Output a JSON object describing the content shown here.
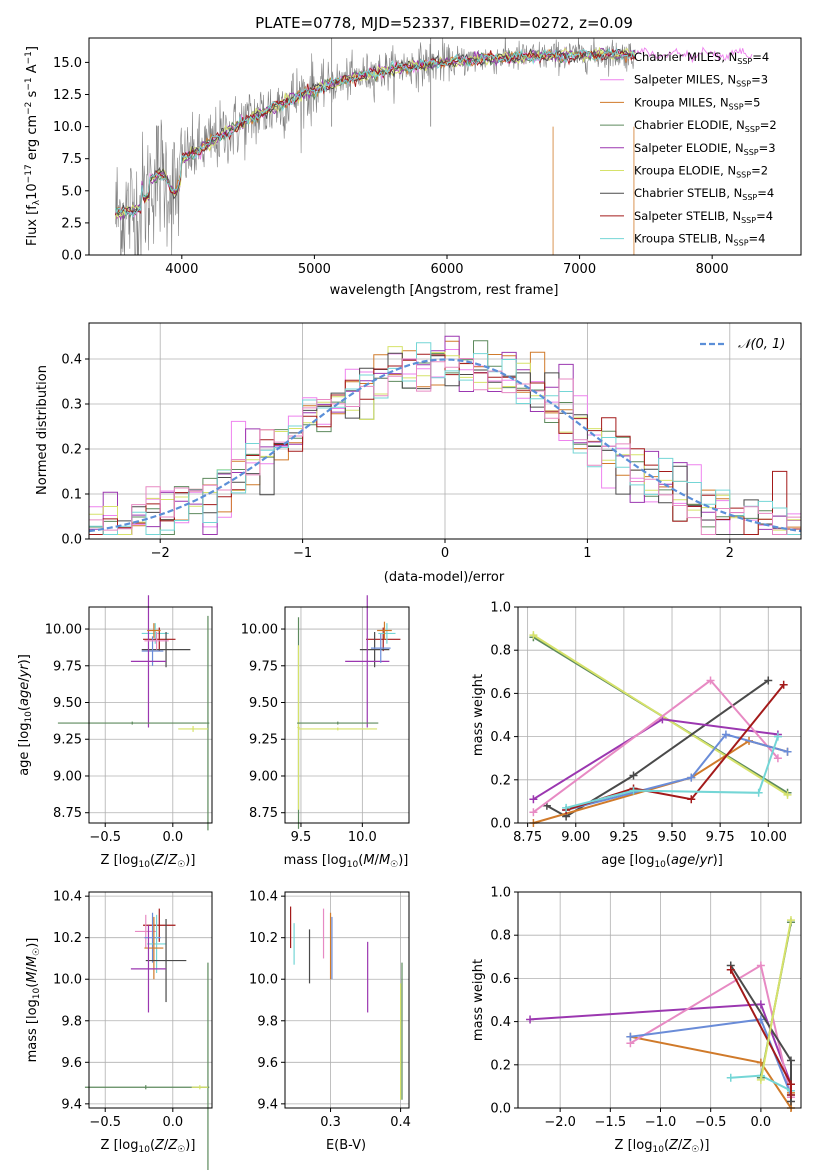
{
  "colors": [
    "#808080",
    "#ee82ee",
    "#d07a2a",
    "#5d8a5d",
    "#9b37b0",
    "#d6e26a",
    "#4a4a4a",
    "#a31a1a",
    "#74d6d6"
  ],
  "chart_data": [
    {
      "id": "spectrum",
      "type": "line",
      "title": "PLATE=0778, MJD=52337, FIBERID=0272, z=0.09",
      "xlabel": "wavelength [Angstrom, rest frame]",
      "ylabel_main": "Flux [f",
      "ylabel_sub": "λ",
      "ylabel_rest": "10",
      "ylabel_sup1": "−17",
      "ylabel_units": " erg cm",
      "ylabel_sup2": "−2",
      "ylabel_s": " s",
      "ylabel_sup3": "−1",
      "ylabel_A": " A",
      "ylabel_sup4": "−1",
      "ylabel_close": "]",
      "xlim": [
        3300,
        8670
      ],
      "ylim": [
        0,
        16.9
      ],
      "xticks": [
        "4000",
        "5000",
        "6000",
        "7000",
        "8000"
      ],
      "yticks": [
        "0.0",
        "2.5",
        "5.0",
        "7.5",
        "10.0",
        "12.5",
        "15.0"
      ],
      "legend_loc": "right",
      "legend": [
        {
          "label": "Chabrier MILES, N",
          "sub": "SSP",
          "suffix": "=4"
        },
        {
          "label": "Salpeter MILES, N",
          "sub": "SSP",
          "suffix": "=3"
        },
        {
          "label": "Kroupa MILES, N",
          "sub": "SSP",
          "suffix": "=5"
        },
        {
          "label": "Chabrier ELODIE, N",
          "sub": "SSP",
          "suffix": "=2"
        },
        {
          "label": "Salpeter ELODIE, N",
          "sub": "SSP",
          "suffix": "=3"
        },
        {
          "label": "Kroupa ELODIE, N",
          "sub": "SSP",
          "suffix": "=2"
        },
        {
          "label": "Chabrier STELIB, N",
          "sub": "SSP",
          "suffix": "=4"
        },
        {
          "label": "Salpeter STELIB, N",
          "sub": "SSP",
          "suffix": "=4"
        },
        {
          "label": "Kroupa STELIB, N",
          "sub": "SSP",
          "suffix": "=4"
        }
      ]
    },
    {
      "id": "residuals",
      "type": "histogram",
      "xlabel": "(data-model)/error",
      "ylabel": "Normed distribution",
      "xlim": [
        -2.5,
        2.5
      ],
      "ylim": [
        0,
        0.48
      ],
      "xticks": [
        "−2",
        "−1",
        "0",
        "1",
        "2"
      ],
      "yticks": [
        "0.0",
        "0.1",
        "0.2",
        "0.3",
        "0.4"
      ],
      "legend": "𝒩(0, 1)",
      "gaussian": {
        "mu": 0,
        "sigma": 1
      },
      "bin_width": 0.1
    },
    {
      "id": "age_vs_Z",
      "type": "errorbar",
      "xlabel": "Z [log10(Z/Z☉)]",
      "ylabel": "age  [log10(age/yr)]",
      "xlim": [
        -0.62,
        0.29
      ],
      "ylim": [
        8.68,
        10.15
      ],
      "xticks": [
        "−0.5",
        "0.0"
      ],
      "yticks": [
        "8.75",
        "9.00",
        "9.25",
        "9.50",
        "9.75",
        "10.00"
      ],
      "points": [
        {
          "x": -0.13,
          "y": 9.97,
          "xerr": 0.1,
          "yerr": 0.07,
          "color": "#74d6d6"
        },
        {
          "x": -0.1,
          "y": 9.93,
          "xerr": 0.12,
          "yerr": 0.08,
          "color": "#a31a1a"
        },
        {
          "x": -0.05,
          "y": 9.86,
          "xerr": 0.18,
          "yerr": 0.12,
          "color": "#4a4a4a"
        },
        {
          "x": -0.15,
          "y": 9.85,
          "xerr": 0.08,
          "yerr": 0.1,
          "color": "#6a8cd8"
        },
        {
          "x": -0.18,
          "y": 9.78,
          "xerr": 0.13,
          "yerr": 0.45,
          "color": "#9b37b0"
        },
        {
          "x": -0.12,
          "y": 9.92,
          "xerr": 0.09,
          "yerr": 0.06,
          "color": "#e78ac3"
        },
        {
          "x": -0.14,
          "y": 9.99,
          "xerr": 0.05,
          "yerr": 0.05,
          "color": "#d07a2a"
        },
        {
          "x": 0.26,
          "y": 9.36,
          "xerr": 0.01,
          "yerr": 0.73,
          "color": "#5d8a5d"
        },
        {
          "x": 0.15,
          "y": 9.32,
          "xerr": 0.11,
          "yerr": 0.02,
          "color": "#d6e26a"
        },
        {
          "x": -0.3,
          "y": 9.36,
          "xerr": 0.55,
          "yerr": 0.01,
          "color": "#5d8a5d"
        }
      ]
    },
    {
      "id": "age_vs_mass",
      "type": "errorbar",
      "xlabel": "mass [log10(M/M☉)]",
      "xlim": [
        9.37,
        10.38
      ],
      "ylim": [
        8.68,
        10.15
      ],
      "xticks": [
        "9.5",
        "10.0"
      ],
      "yticks": [
        "8.75",
        "9.00",
        "9.25",
        "9.50",
        "9.75",
        "10.00"
      ],
      "points": [
        {
          "x": 10.17,
          "y": 9.93,
          "xerr": 0.14,
          "yerr": 0.08,
          "color": "#a31a1a"
        },
        {
          "x": 10.1,
          "y": 9.86,
          "xerr": 0.12,
          "yerr": 0.12,
          "color": "#4a4a4a"
        },
        {
          "x": 10.04,
          "y": 9.78,
          "xerr": 0.18,
          "yerr": 0.45,
          "color": "#9b37b0"
        },
        {
          "x": 10.15,
          "y": 9.87,
          "xerr": 0.08,
          "yerr": 0.1,
          "color": "#6a8cd8"
        },
        {
          "x": 10.2,
          "y": 9.97,
          "xerr": 0.07,
          "yerr": 0.07,
          "color": "#74d6d6"
        },
        {
          "x": 10.18,
          "y": 9.99,
          "xerr": 0.06,
          "yerr": 0.06,
          "color": "#d07a2a"
        },
        {
          "x": 9.48,
          "y": 9.36,
          "xerr": 0.01,
          "yerr": 0.72,
          "color": "#5d8a5d"
        },
        {
          "x": 9.48,
          "y": 9.33,
          "xerr": 0.01,
          "yerr": 0.56,
          "color": "#d6e26a"
        },
        {
          "x": 9.8,
          "y": 9.36,
          "xerr": 0.33,
          "yerr": 0.01,
          "color": "#5d8a5d"
        },
        {
          "x": 9.8,
          "y": 9.32,
          "xerr": 0.32,
          "yerr": 0.01,
          "color": "#d6e26a"
        }
      ]
    },
    {
      "id": "massweight_vs_age",
      "type": "line",
      "xlabel": "age  [log10(age/yr)]",
      "ylabel": "mass weight",
      "xlim": [
        8.7,
        10.17
      ],
      "ylim": [
        0,
        1.0
      ],
      "xticks": [
        "8.75",
        "9.00",
        "9.25",
        "9.50",
        "9.75",
        "10.00"
      ],
      "yticks": [
        "0.0",
        "0.2",
        "0.4",
        "0.6",
        "0.8",
        "1.0"
      ],
      "series": [
        {
          "color": "#5d8a5d",
          "x": [
            8.78,
            10.1
          ],
          "y": [
            0.86,
            0.14
          ]
        },
        {
          "color": "#d6e26a",
          "x": [
            8.78,
            10.1
          ],
          "y": [
            0.87,
            0.13
          ]
        },
        {
          "color": "#4a4a4a",
          "x": [
            8.85,
            8.95,
            9.3,
            10.0
          ],
          "y": [
            0.08,
            0.03,
            0.22,
            0.66
          ]
        },
        {
          "color": "#9b37b0",
          "x": [
            8.78,
            9.45,
            10.05
          ],
          "y": [
            0.11,
            0.48,
            0.41
          ]
        },
        {
          "color": "#e78ac3",
          "x": [
            8.78,
            9.7,
            10.05
          ],
          "y": [
            0.05,
            0.66,
            0.3
          ]
        },
        {
          "color": "#d07a2a",
          "x": [
            8.78,
            9.6,
            9.9,
            10.1
          ],
          "y": [
            0.0,
            0.21,
            0.38,
            0.33
          ]
        },
        {
          "color": "#6a8cd8",
          "x": [
            8.95,
            9.6,
            9.78,
            10.1
          ],
          "y": [
            0.06,
            0.21,
            0.41,
            0.33
          ]
        },
        {
          "color": "#a31a1a",
          "x": [
            8.95,
            9.3,
            9.6,
            10.08
          ],
          "y": [
            0.06,
            0.16,
            0.11,
            0.64
          ]
        },
        {
          "color": "#74d6d6",
          "x": [
            8.95,
            9.3,
            9.95,
            10.05
          ],
          "y": [
            0.07,
            0.15,
            0.14,
            0.4
          ]
        }
      ]
    },
    {
      "id": "mass_vs_Z",
      "type": "errorbar",
      "xlabel": "Z [log10(Z/Z☉)]",
      "ylabel": "mass [log10(M/M☉)]",
      "xlim": [
        -0.62,
        0.29
      ],
      "ylim": [
        9.38,
        10.42
      ],
      "xticks": [
        "−0.5",
        "0.0"
      ],
      "yticks": [
        "9.4",
        "9.6",
        "9.8",
        "10.0",
        "10.2",
        "10.4"
      ],
      "points": [
        {
          "x": -0.1,
          "y": 10.26,
          "xerr": 0.12,
          "yerr": 0.08,
          "color": "#a31a1a"
        },
        {
          "x": -0.2,
          "y": 10.23,
          "xerr": 0.08,
          "yerr": 0.08,
          "color": "#e78ac3"
        },
        {
          "x": -0.15,
          "y": 10.2,
          "xerr": 0.06,
          "yerr": 0.12,
          "color": "#6a8cd8"
        },
        {
          "x": -0.12,
          "y": 10.17,
          "xerr": 0.07,
          "yerr": 0.14,
          "color": "#74d6d6"
        },
        {
          "x": -0.14,
          "y": 10.15,
          "xerr": 0.07,
          "yerr": 0.15,
          "color": "#d07a2a"
        },
        {
          "x": -0.05,
          "y": 10.09,
          "xerr": 0.15,
          "yerr": 0.2,
          "color": "#4a4a4a"
        },
        {
          "x": -0.18,
          "y": 10.05,
          "xerr": 0.13,
          "yerr": 0.21,
          "color": "#9b37b0"
        },
        {
          "x": 0.26,
          "y": 9.48,
          "xerr": 0.01,
          "yerr": 0.6,
          "color": "#5d8a5d"
        },
        {
          "x": -0.2,
          "y": 9.48,
          "xerr": 0.45,
          "yerr": 0.01,
          "color": "#5d8a5d"
        },
        {
          "x": 0.2,
          "y": 9.48,
          "xerr": 0.06,
          "yerr": 0.01,
          "color": "#d6e26a"
        }
      ]
    },
    {
      "id": "mass_vs_EBV",
      "type": "errorbar",
      "xlabel": "E(B-V)",
      "xlim": [
        0.235,
        0.412
      ],
      "ylim": [
        9.38,
        10.42
      ],
      "xticks": [
        "0.3",
        "0.4"
      ],
      "yticks": [
        "9.4",
        "9.6",
        "9.8",
        "10.0",
        "10.2",
        "10.4"
      ],
      "points": [
        {
          "x": 0.243,
          "y": 10.25,
          "xerr": 0.0,
          "yerr": 0.1,
          "color": "#a31a1a"
        },
        {
          "x": 0.248,
          "y": 10.17,
          "xerr": 0.0,
          "yerr": 0.1,
          "color": "#74d6d6"
        },
        {
          "x": 0.27,
          "y": 10.11,
          "xerr": 0.0,
          "yerr": 0.13,
          "color": "#4a4a4a"
        },
        {
          "x": 0.29,
          "y": 10.22,
          "xerr": 0.0,
          "yerr": 0.12,
          "color": "#e78ac3"
        },
        {
          "x": 0.3,
          "y": 10.16,
          "xerr": 0.0,
          "yerr": 0.16,
          "color": "#d07a2a"
        },
        {
          "x": 0.302,
          "y": 10.15,
          "xerr": 0.0,
          "yerr": 0.15,
          "color": "#6a8cd8"
        },
        {
          "x": 0.353,
          "y": 10.01,
          "xerr": 0.0,
          "yerr": 0.17,
          "color": "#9b37b0"
        },
        {
          "x": 0.402,
          "y": 9.75,
          "xerr": 0.0,
          "yerr": 0.33,
          "color": "#5d8a5d"
        },
        {
          "x": 0.4,
          "y": 9.7,
          "xerr": 0.0,
          "yerr": 0.28,
          "color": "#d6e26a"
        }
      ]
    },
    {
      "id": "massweight_vs_Z",
      "type": "line",
      "xlabel": "Z [log10(Z/Z☉)]",
      "ylabel": "mass weight",
      "xlim": [
        -2.42,
        0.4
      ],
      "ylim": [
        0,
        1.0
      ],
      "xticks": [
        "−2.0",
        "−1.5",
        "−1.0",
        "−0.5",
        "0.0"
      ],
      "yticks": [
        "0.0",
        "0.2",
        "0.4",
        "0.6",
        "0.8",
        "1.0"
      ],
      "series": [
        {
          "color": "#9b37b0",
          "x": [
            -2.3,
            0.0,
            0.3
          ],
          "y": [
            0.41,
            0.48,
            0.11
          ]
        },
        {
          "color": "#d07a2a",
          "x": [
            -1.3,
            0.0,
            0.3,
            0.3
          ],
          "y": [
            0.33,
            0.21,
            0.0,
            0.07
          ]
        },
        {
          "color": "#e78ac3",
          "x": [
            -1.3,
            0.0,
            0.3
          ],
          "y": [
            0.3,
            0.66,
            0.05
          ]
        },
        {
          "color": "#6a8cd8",
          "x": [
            -1.3,
            0.0,
            0.3
          ],
          "y": [
            0.33,
            0.41,
            0.06
          ]
        },
        {
          "color": "#74d6d6",
          "x": [
            -0.3,
            0.0,
            0.3
          ],
          "y": [
            0.14,
            0.15,
            0.08
          ]
        },
        {
          "color": "#4a4a4a",
          "x": [
            -0.3,
            0.3,
            0.3
          ],
          "y": [
            0.66,
            0.22,
            0.03
          ]
        },
        {
          "color": "#a31a1a",
          "x": [
            -0.3,
            0.3,
            0.3
          ],
          "y": [
            0.64,
            0.11,
            0.06
          ]
        },
        {
          "color": "#5d8a5d",
          "x": [
            0.0,
            0.3
          ],
          "y": [
            0.14,
            0.86
          ]
        },
        {
          "color": "#d6e26a",
          "x": [
            0.0,
            0.3
          ],
          "y": [
            0.13,
            0.87
          ]
        }
      ]
    }
  ]
}
